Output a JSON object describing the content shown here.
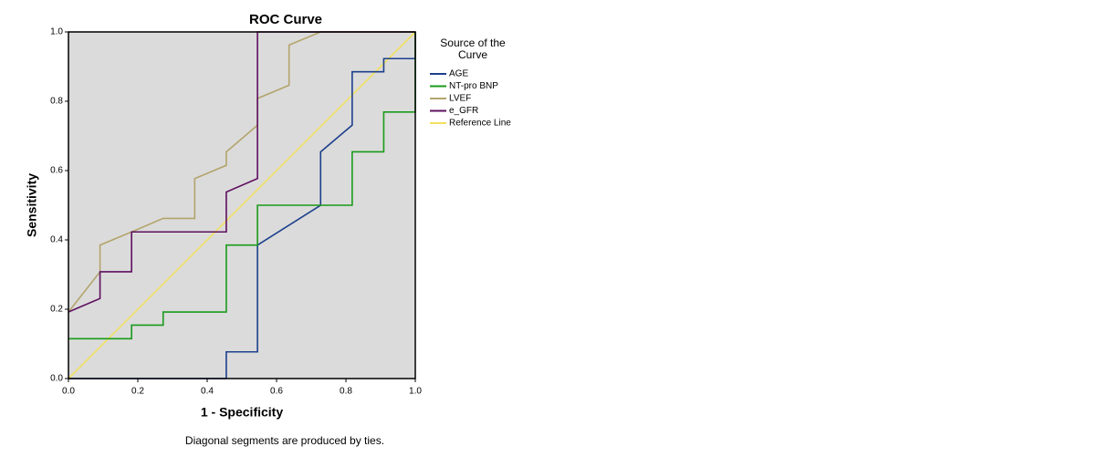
{
  "chart_data": {
    "type": "line",
    "title": "ROC Curve",
    "xlabel": "1 - Specificity",
    "ylabel": "Sensitivity",
    "footnote": "Diagonal segments are produced by ties.",
    "legend_title": [
      "Source of the",
      "Curve"
    ],
    "xlim": [
      0,
      1
    ],
    "ylim": [
      0,
      1
    ],
    "xticks": [
      {
        "value": 0,
        "label": "0.0"
      },
      {
        "value": 0.2,
        "label": "0.2"
      },
      {
        "value": 0.4,
        "label": "0.4"
      },
      {
        "value": 0.6,
        "label": "0.6"
      },
      {
        "value": 0.8,
        "label": "0.8"
      },
      {
        "value": 1,
        "label": "1.0"
      }
    ],
    "yticks": [
      {
        "value": 0,
        "label": "0.0"
      },
      {
        "value": 0.2,
        "label": "0.2"
      },
      {
        "value": 0.4,
        "label": "0.4"
      },
      {
        "value": 0.6,
        "label": "0.6"
      },
      {
        "value": 0.8,
        "label": "0.8"
      },
      {
        "value": 1,
        "label": "1.0"
      }
    ],
    "series": [
      {
        "name": "AGE",
        "color": "#1c3f8c",
        "x": [
          0,
          0.455,
          0.455,
          0.545,
          0.545,
          0.727,
          0.727,
          0.818,
          0.818,
          0.909,
          0.909,
          1,
          1
        ],
        "values": [
          0,
          0,
          0.077,
          0.077,
          0.385,
          0.5,
          0.654,
          0.731,
          0.885,
          0.885,
          0.923,
          0.923,
          1
        ]
      },
      {
        "name": "NT-pro BNP",
        "color": "#1a9a1a",
        "x": [
          0,
          0.182,
          0.182,
          0.273,
          0.273,
          0.455,
          0.455,
          0.545,
          0.545,
          0.818,
          0.818,
          0.909,
          0.909,
          1,
          1
        ],
        "values": [
          0.115,
          0.115,
          0.154,
          0.154,
          0.192,
          0.192,
          0.385,
          0.385,
          0.5,
          0.5,
          0.654,
          0.654,
          0.769,
          0.769,
          1
        ]
      },
      {
        "name": "LVEF",
        "color": "#b3a46c",
        "x": [
          0,
          0.091,
          0.091,
          0.182,
          0.273,
          0.364,
          0.364,
          0.455,
          0.455,
          0.545,
          0.545,
          0.636,
          0.636,
          0.727,
          1
        ],
        "values": [
          0.192,
          0.308,
          0.385,
          0.423,
          0.462,
          0.462,
          0.577,
          0.615,
          0.654,
          0.731,
          0.808,
          0.846,
          0.962,
          1,
          1
        ]
      },
      {
        "name": "e_GFR",
        "color": "#5e1060",
        "x": [
          0,
          0.091,
          0.091,
          0.182,
          0.182,
          0.455,
          0.455,
          0.545,
          0.545,
          1
        ],
        "values": [
          0.192,
          0.231,
          0.308,
          0.308,
          0.423,
          0.423,
          0.538,
          0.577,
          1,
          1
        ]
      },
      {
        "name": "Reference Line",
        "color": "#f0e060",
        "x": [
          0,
          1
        ],
        "values": [
          0,
          1
        ]
      }
    ]
  }
}
